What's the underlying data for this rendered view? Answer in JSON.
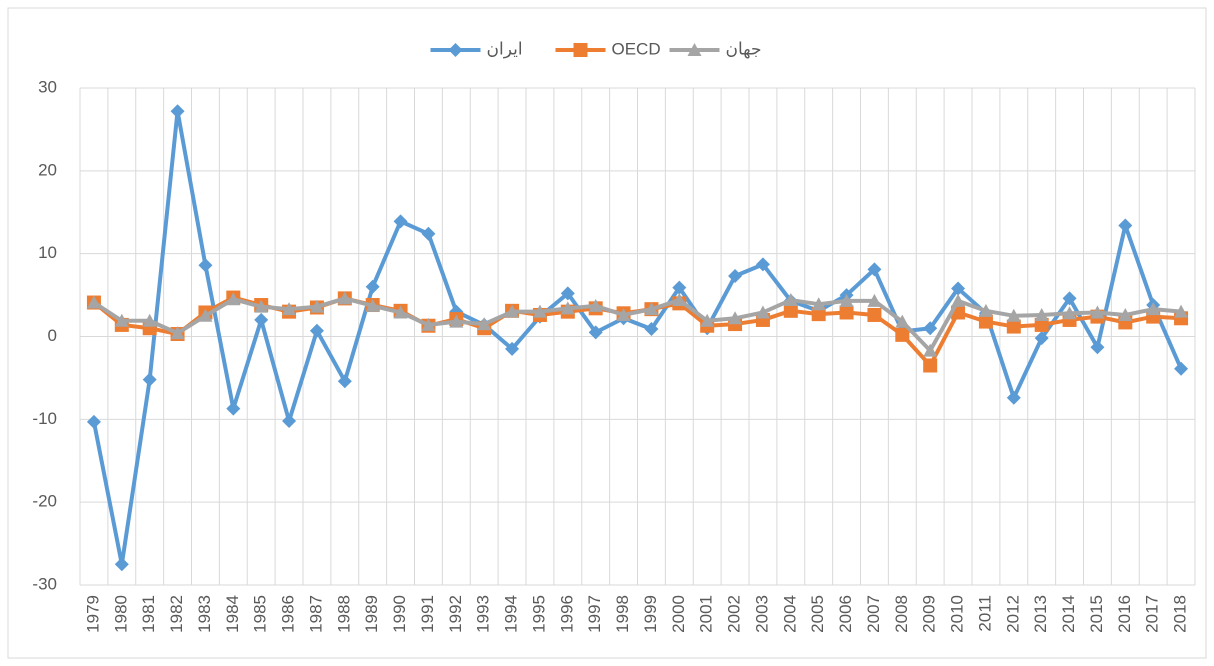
{
  "chart_data": {
    "type": "line",
    "categories": [
      "1979",
      "1980",
      "1981",
      "1982",
      "1983",
      "1984",
      "1985",
      "1986",
      "1987",
      "1988",
      "1989",
      "1990",
      "1991",
      "1992",
      "1993",
      "1994",
      "1995",
      "1996",
      "1997",
      "1998",
      "1999",
      "2000",
      "2001",
      "2002",
      "2003",
      "2004",
      "2005",
      "2006",
      "2007",
      "2008",
      "2009",
      "2010",
      "2011",
      "2012",
      "2013",
      "2014",
      "2015",
      "2016",
      "2017",
      "2018"
    ],
    "series": [
      {
        "name": "ایران",
        "color": "#5b9bd5",
        "marker": "diamond",
        "values": [
          -10.3,
          -27.5,
          -5.2,
          27.2,
          8.6,
          -8.7,
          2.0,
          -10.2,
          0.7,
          -5.4,
          6.0,
          13.9,
          12.4,
          3.0,
          1.4,
          -1.5,
          2.4,
          5.2,
          0.5,
          2.2,
          0.9,
          5.9,
          1.0,
          7.3,
          8.7,
          4.3,
          3.1,
          5.0,
          8.1,
          0.6,
          1.0,
          5.8,
          2.8,
          -7.4,
          -0.2,
          4.6,
          -1.3,
          13.4,
          3.8,
          -3.9
        ]
      },
      {
        "name": "OECD",
        "color": "#ed7d31",
        "marker": "square",
        "values": [
          4.1,
          1.4,
          1.0,
          0.3,
          2.9,
          4.7,
          3.8,
          3.0,
          3.5,
          4.6,
          3.8,
          3.1,
          1.3,
          2.1,
          1.0,
          3.1,
          2.6,
          3.0,
          3.4,
          2.8,
          3.3,
          4.0,
          1.3,
          1.5,
          2.0,
          3.1,
          2.7,
          2.9,
          2.6,
          0.2,
          -3.5,
          2.9,
          1.8,
          1.2,
          1.4,
          2.0,
          2.4,
          1.7,
          2.4,
          2.2
        ]
      },
      {
        "name": "جهان",
        "color": "#a5a5a5",
        "marker": "triangle",
        "values": [
          4.1,
          1.9,
          1.9,
          0.4,
          2.5,
          4.5,
          3.6,
          3.3,
          3.6,
          4.6,
          3.7,
          2.9,
          1.4,
          1.8,
          1.5,
          3.0,
          3.0,
          3.4,
          3.7,
          2.6,
          3.3,
          4.4,
          1.9,
          2.2,
          2.9,
          4.4,
          3.9,
          4.3,
          4.3,
          1.8,
          -1.7,
          4.3,
          3.1,
          2.5,
          2.6,
          2.8,
          2.9,
          2.6,
          3.3,
          3.0
        ]
      }
    ],
    "ylim": [
      -30,
      30
    ],
    "yticks": [
      -30,
      -20,
      -10,
      0,
      10,
      20,
      30
    ],
    "grid": true,
    "legend": "top"
  }
}
